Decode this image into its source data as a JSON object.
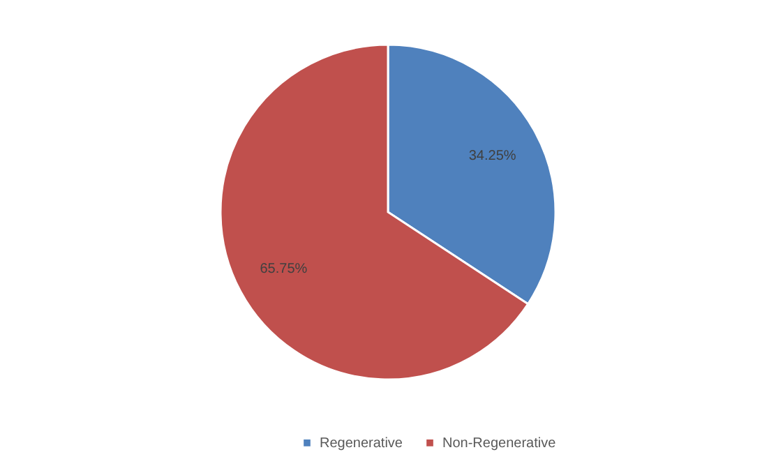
{
  "chart_data": {
    "type": "pie",
    "categories": [
      "Regenerative",
      "Non-Regenerative"
    ],
    "values": [
      34.25,
      65.75
    ],
    "colors": [
      "#4f81bd",
      "#c0504d"
    ],
    "value_labels": [
      "34.25%",
      "65.75%"
    ],
    "legend": "bottom"
  }
}
